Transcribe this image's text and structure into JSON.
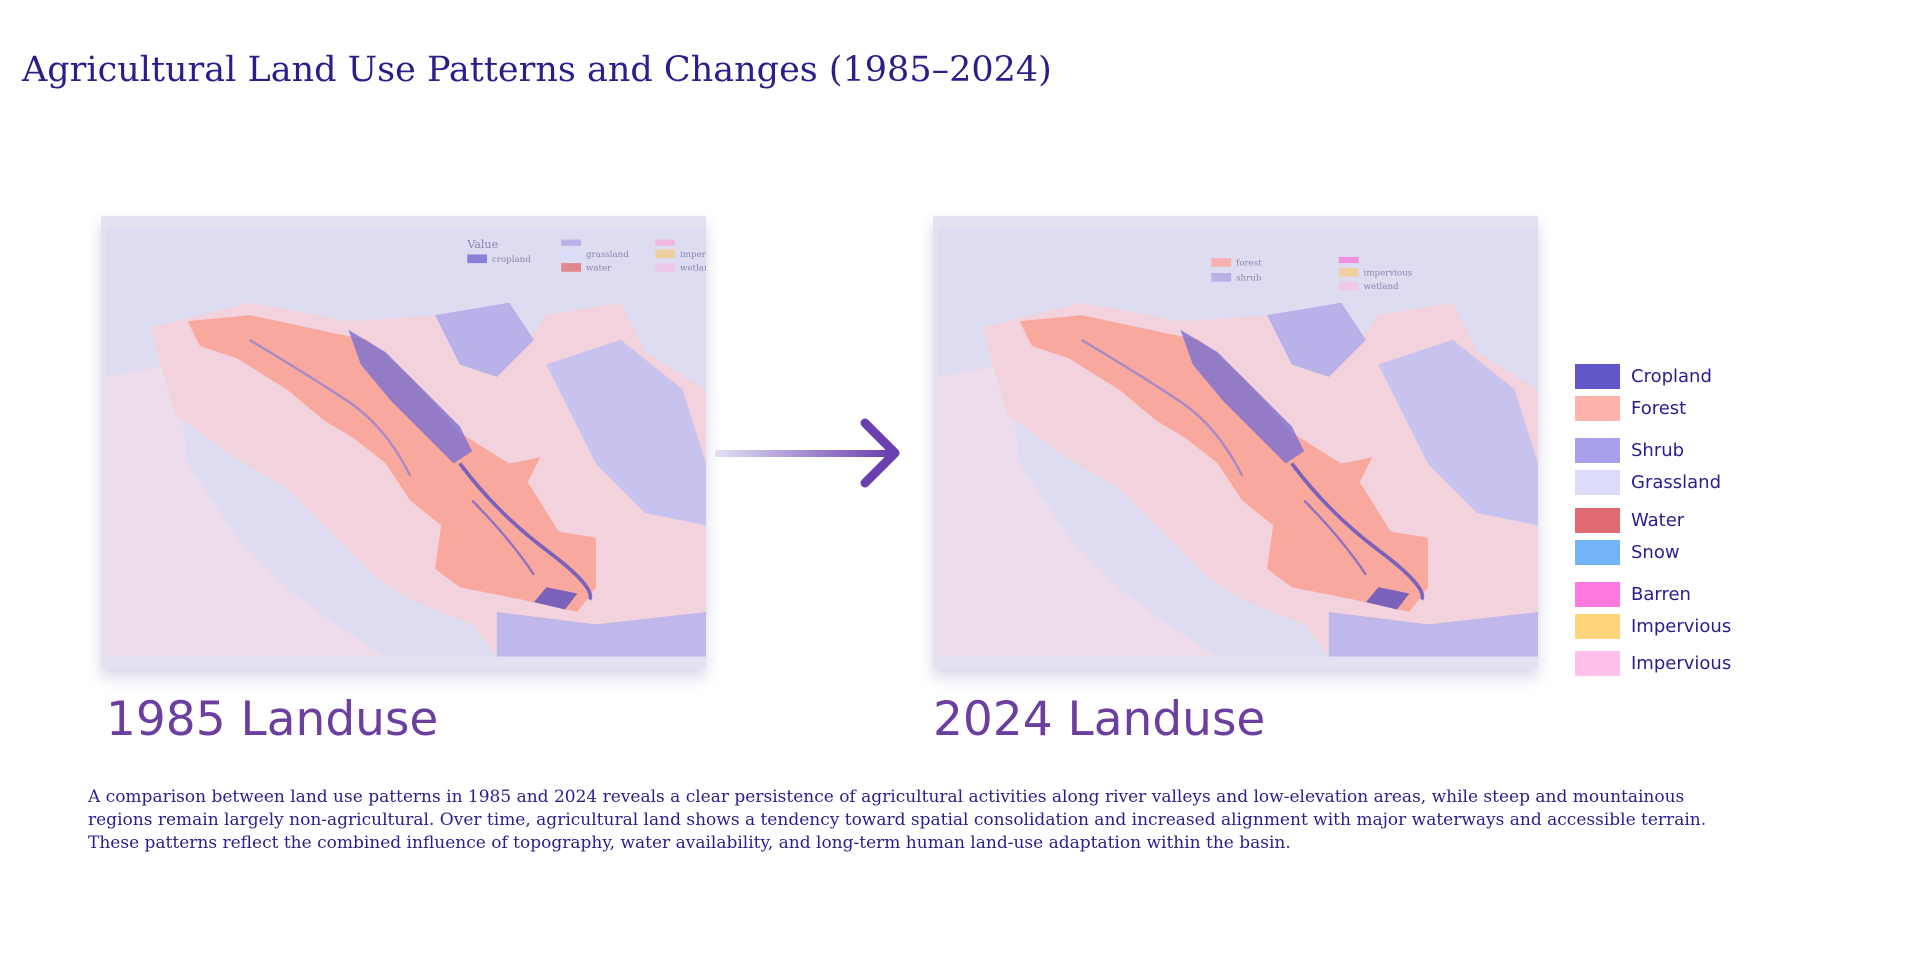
{
  "header": {
    "title": "Agricultural Land Use Patterns and Changes (1985–2024)"
  },
  "maps": [
    {
      "caption": "1985 Landuse",
      "inset_labels": [
        "Value",
        "cropland",
        "grassland",
        "water",
        "imperv",
        "wetlan"
      ]
    },
    {
      "caption": "2024 Landuse",
      "inset_labels": [
        "forest",
        "shrub",
        "impervious",
        "wetland"
      ]
    }
  ],
  "legend": [
    {
      "label": "Cropland",
      "color": "#6257c8"
    },
    {
      "label": "Forest",
      "color": "#ffb3ad"
    },
    {
      "label": "Shrub",
      "color": "#a8a0e8"
    },
    {
      "label": "Grassland",
      "color": "#dcdcfa"
    },
    {
      "label": "Water",
      "color": "#e06a72"
    },
    {
      "label": "Snow",
      "color": "#72b4f8"
    },
    {
      "label": "Barren",
      "color": "#ff78e0"
    },
    {
      "label": "Impervious",
      "color": "#ffd47a"
    },
    {
      "label": "Impervious",
      "color": "#ffc0ec"
    }
  ],
  "description": "A comparison between land use patterns in 1985 and 2024 reveals a clear persistence of agricultural activities along river valleys and low-elevation areas, while steep and mountainous regions remain largely non-agricultural. Over time, agricultural land shows a tendency toward spatial consolidation and increased alignment with major waterways and accessible terrain. These patterns reflect the combined influence of topography, water availability, and long-term human land-use adaptation within the basin."
}
